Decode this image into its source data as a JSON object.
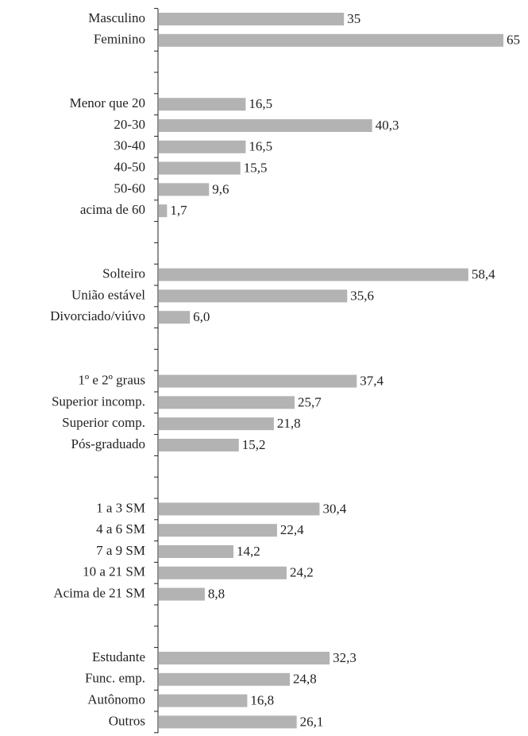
{
  "chart_data": {
    "type": "bar",
    "orientation": "horizontal",
    "color": "#b3b3b3",
    "categories": [
      "Masculino",
      "Feminino",
      null,
      null,
      "Menor que 20",
      "20-30",
      "30-40",
      "40-50",
      "50-60",
      "acima de 60",
      null,
      null,
      "Solteiro",
      "União estável",
      "Divorciado/viúvo",
      null,
      null,
      "1º e 2º graus",
      "Superior incomp.",
      "Superior comp.",
      "Pós-graduado",
      null,
      null,
      "1 a 3 SM",
      "4 a 6 SM",
      "7 a 9 SM",
      "10 a 21 SM",
      "Acima de 21 SM",
      null,
      null,
      "Estudante",
      "Func. emp.",
      "Autônomo",
      "Outros"
    ],
    "values": [
      35,
      65,
      null,
      null,
      16.5,
      40.3,
      16.5,
      15.5,
      9.6,
      1.7,
      null,
      null,
      58.4,
      35.6,
      6.0,
      null,
      null,
      37.4,
      25.7,
      21.8,
      15.2,
      null,
      null,
      30.4,
      22.4,
      14.2,
      24.2,
      8.8,
      null,
      null,
      32.3,
      24.8,
      16.8,
      26.1
    ],
    "value_labels": [
      "35",
      "65",
      null,
      null,
      "16,5",
      "40,3",
      "16,5",
      "15,5",
      "9,6",
      "1,7",
      null,
      null,
      "58,4",
      "35,6",
      "6,0",
      null,
      null,
      "37,4",
      "25,7",
      "21,8",
      "15,2",
      null,
      null,
      "30,4",
      "22,4",
      "14,2",
      "24,2",
      "8,8",
      null,
      null,
      "32,3",
      "24,8",
      "16,8",
      "26,1"
    ]
  }
}
